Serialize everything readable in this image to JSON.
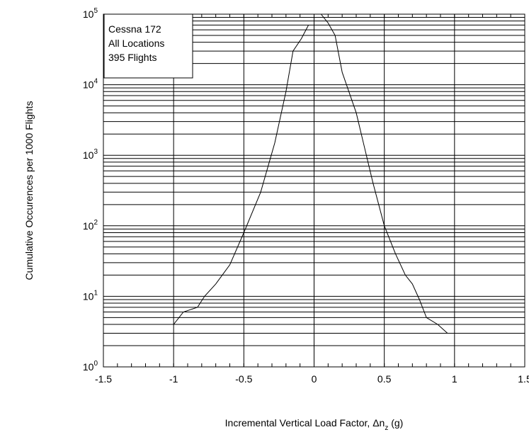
{
  "chart_data": {
    "type": "line",
    "title": "",
    "xlabel": "Incremental Vertical Load Factor, Δn",
    "xlabel_subscript": "z",
    "xlabel_unit": " (g)",
    "ylabel": "Cumulative Occurences per 1000 Flights",
    "xlim": [
      -1.5,
      1.5
    ],
    "ylim": [
      1,
      100000
    ],
    "yscale": "log",
    "grid": true,
    "x_ticks": [
      -1.5,
      -1,
      -0.5,
      0,
      0.5,
      1,
      1.5
    ],
    "x_tick_labels": [
      "-1.5",
      "-1",
      "-0.5",
      "0",
      "0.5",
      "1",
      "1.5"
    ],
    "y_ticks": [
      1,
      10,
      100,
      1000,
      10000,
      100000
    ],
    "y_tick_base": "10",
    "y_tick_exponents": [
      "0",
      "1",
      "2",
      "3",
      "4",
      "5"
    ],
    "legend": {
      "position": "top-left",
      "lines": [
        "Cessna 172",
        "All Locations",
        "395 Flights"
      ]
    },
    "series": [
      {
        "points": [
          [
            -1.0,
            4
          ],
          [
            -0.93,
            6
          ],
          [
            -0.83,
            7
          ],
          [
            -0.78,
            10
          ],
          [
            -0.7,
            15
          ],
          [
            -0.6,
            28
          ],
          [
            -0.5,
            80
          ],
          [
            -0.38,
            300
          ],
          [
            -0.28,
            1500
          ],
          [
            -0.2,
            8000
          ],
          [
            -0.15,
            30000
          ],
          [
            -0.09,
            45000
          ],
          [
            -0.04,
            70000
          ]
        ]
      },
      {
        "points": [
          [
            0.05,
            100000
          ],
          [
            0.1,
            75000
          ],
          [
            0.15,
            50000
          ],
          [
            0.2,
            15000
          ],
          [
            0.3,
            4000
          ],
          [
            0.42,
            400
          ],
          [
            0.5,
            100
          ],
          [
            0.58,
            40
          ],
          [
            0.65,
            20
          ],
          [
            0.7,
            15
          ],
          [
            0.75,
            9
          ],
          [
            0.8,
            5
          ],
          [
            0.88,
            4
          ],
          [
            0.95,
            3
          ]
        ]
      }
    ]
  }
}
